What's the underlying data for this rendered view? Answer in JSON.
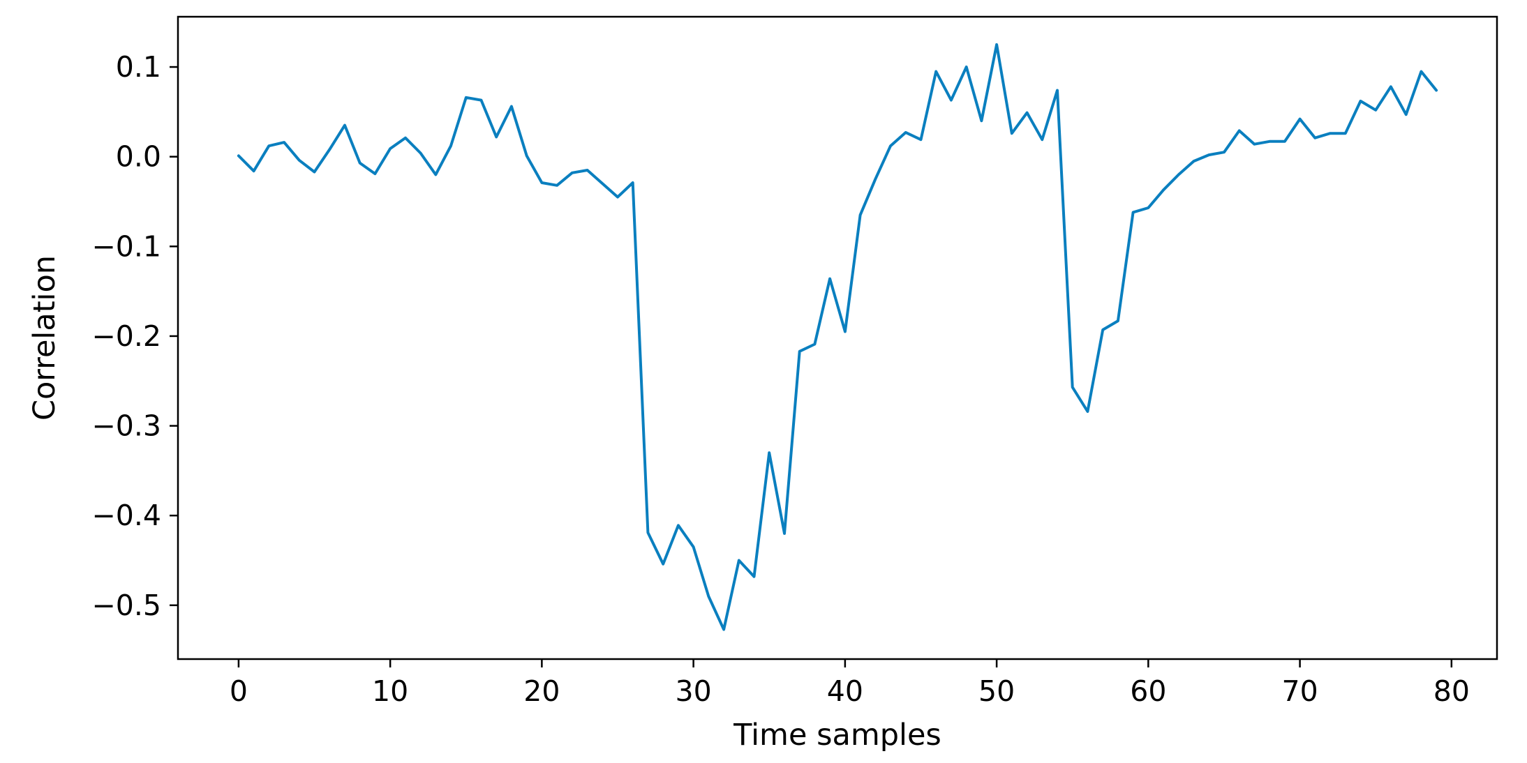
{
  "chart_data": {
    "type": "line",
    "title": "",
    "xlabel": "Time samples",
    "ylabel": "Correlation",
    "xlim": [
      -4,
      83
    ],
    "ylim": [
      -0.56,
      0.156
    ],
    "xticks": [
      0,
      10,
      20,
      30,
      40,
      50,
      60,
      70,
      80
    ],
    "yticks": [
      0.1,
      0.0,
      -0.1,
      -0.2,
      -0.3,
      -0.4,
      -0.5
    ],
    "xtick_labels": [
      "0",
      "10",
      "20",
      "30",
      "40",
      "50",
      "60",
      "70",
      "80"
    ],
    "ytick_labels": [
      "0.1",
      "0.0",
      "−0.1",
      "−0.2",
      "−0.3",
      "−0.4",
      "−0.5"
    ],
    "grid": false,
    "legend": false,
    "colors": {
      "line": "#0a7fbf",
      "axes": "#000000",
      "background": "#ffffff"
    },
    "series": [
      {
        "x": [
          0,
          1,
          2,
          3,
          4,
          5,
          6,
          7,
          8,
          9,
          10,
          11,
          12,
          13,
          14,
          15,
          16,
          17,
          18,
          19,
          20,
          21,
          22,
          23,
          24,
          25,
          26,
          27,
          28,
          29,
          30,
          31,
          32,
          33,
          34,
          35,
          36,
          37,
          38,
          39,
          40,
          41,
          42,
          43,
          44,
          45,
          46,
          47,
          48,
          49,
          50,
          51,
          52,
          53,
          54,
          55,
          56,
          57,
          58,
          59,
          60,
          61,
          62,
          63,
          64,
          65,
          66,
          67,
          68,
          69,
          70,
          71,
          72,
          73,
          74,
          75,
          76,
          77,
          78,
          79
        ],
        "values": [
          0.001,
          -0.016,
          0.012,
          0.016,
          -0.004,
          -0.017,
          0.008,
          0.035,
          -0.007,
          -0.019,
          0.009,
          0.021,
          0.004,
          -0.02,
          0.012,
          0.066,
          0.063,
          0.022,
          0.056,
          0.001,
          -0.029,
          -0.032,
          -0.018,
          -0.015,
          -0.03,
          -0.045,
          -0.029,
          -0.419,
          -0.454,
          -0.411,
          -0.435,
          -0.49,
          -0.527,
          -0.45,
          -0.468,
          -0.33,
          -0.42,
          -0.217,
          -0.209,
          -0.136,
          -0.195,
          -0.065,
          -0.025,
          0.012,
          0.027,
          0.019,
          0.095,
          0.063,
          0.1,
          0.04,
          0.125,
          0.026,
          0.049,
          0.019,
          0.074,
          -0.257,
          -0.284,
          -0.193,
          -0.183,
          -0.062,
          -0.057,
          -0.037,
          -0.02,
          -0.005,
          0.002,
          0.005,
          0.029,
          0.014,
          0.017,
          0.017,
          0.042,
          0.021,
          0.026,
          0.026,
          0.062,
          0.052,
          0.078,
          0.047,
          0.095,
          0.074
        ]
      }
    ]
  }
}
